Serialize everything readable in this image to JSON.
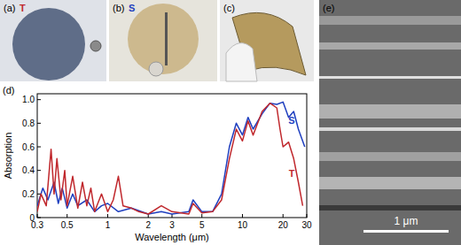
{
  "chart_data": {
    "type": "line",
    "x_label": "Wavelength (μm)",
    "y_label": "Absorption",
    "log": "x",
    "xlim": [
      0.3,
      30
    ],
    "xticks": [
      0.3,
      0.5,
      1,
      2,
      3,
      5,
      10,
      20,
      30
    ],
    "ylim": [
      0,
      1.05
    ],
    "yticks": [
      0,
      0.2,
      0.4,
      0.6,
      0.8,
      {
        "value": 1,
        "label": "1.0"
      }
    ],
    "series": [
      {
        "name": "T",
        "color": "#c0282d",
        "x": [
          0.3,
          0.32,
          0.35,
          0.38,
          0.4,
          0.42,
          0.45,
          0.48,
          0.5,
          0.55,
          0.6,
          0.65,
          0.7,
          0.75,
          0.8,
          0.9,
          1.0,
          1.1,
          1.2,
          1.3,
          1.5,
          1.7,
          2,
          2.5,
          3,
          4,
          4.3,
          5,
          6,
          7,
          8,
          9,
          10,
          11,
          12,
          14,
          16,
          18,
          19,
          20,
          21,
          22,
          24,
          26,
          28
        ],
        "values": [
          0.05,
          0.2,
          0.1,
          0.58,
          0.2,
          0.5,
          0.15,
          0.4,
          0.1,
          0.35,
          0.08,
          0.3,
          0.1,
          0.25,
          0.05,
          0.2,
          0.05,
          0.15,
          0.35,
          0.1,
          0.08,
          0.05,
          0.03,
          0.1,
          0.05,
          0.03,
          0.12,
          0.04,
          0.05,
          0.15,
          0.5,
          0.75,
          0.65,
          0.82,
          0.7,
          0.9,
          0.97,
          0.93,
          0.75,
          0.6,
          0.62,
          0.64,
          0.5,
          0.3,
          0.1
        ]
      },
      {
        "name": "S",
        "color": "#1f3fbf",
        "x": [
          0.3,
          0.33,
          0.36,
          0.4,
          0.43,
          0.46,
          0.5,
          0.55,
          0.6,
          0.7,
          0.8,
          0.9,
          1,
          1.2,
          1.5,
          2,
          2.5,
          3,
          4,
          4.3,
          5,
          6,
          7,
          8,
          9,
          10,
          11,
          12,
          14,
          16,
          18,
          20,
          22,
          24,
          26,
          29
        ],
        "values": [
          0.1,
          0.25,
          0.15,
          0.3,
          0.12,
          0.25,
          0.08,
          0.2,
          0.1,
          0.15,
          0.05,
          0.1,
          0.12,
          0.05,
          0.08,
          0.03,
          0.05,
          0.03,
          0.05,
          0.15,
          0.05,
          0.05,
          0.2,
          0.6,
          0.8,
          0.7,
          0.85,
          0.75,
          0.88,
          0.97,
          0.96,
          0.98,
          0.85,
          0.9,
          0.75,
          0.6
        ]
      }
    ]
  },
  "panels": [
    {
      "label": "(a)",
      "tag": "T"
    },
    {
      "label": "(b)",
      "tag": "S"
    },
    {
      "label": "(c)"
    },
    {
      "label": "(d)"
    },
    {
      "label": "(e)",
      "scale_bar": "1 μm"
    }
  ]
}
